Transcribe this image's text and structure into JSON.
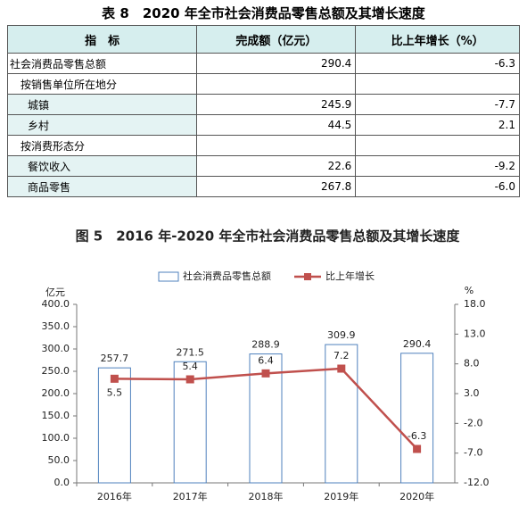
{
  "table": {
    "title": "表 8　2020 年全市社会消费品零售总额及其增长速度",
    "header": [
      "指　标",
      "完成额（亿元）",
      "比上年增长（%）"
    ],
    "rows": [
      [
        "社会消费品零售总额",
        "290.4",
        "-6.3"
      ],
      [
        "按销售单位所在地分",
        null,
        null
      ],
      [
        "城镇",
        "245.9",
        "-7.7"
      ],
      [
        "乡村",
        "44.5",
        "2.1"
      ],
      [
        "按消费形态分",
        null,
        null
      ],
      [
        "餐饮收入",
        "22.6",
        "-9.2"
      ],
      [
        "商品零售",
        "267.8",
        "-6.0"
      ]
    ]
  },
  "chart_data": {
    "type": "bar-line",
    "title": "图 5　2016 年-2020 年全市社会消费品零售总额及其增长速度",
    "y_label": "亿元",
    "y2_label": "%",
    "categories": [
      "2016年",
      "2017年",
      "2018年",
      "2019年",
      "2020年"
    ],
    "series": [
      {
        "name": "社会消费品零售总额",
        "type": "bar",
        "color": "#4f81bd",
        "values": [
          257.7,
          271.5,
          288.9,
          309.9,
          290.4
        ]
      },
      {
        "name": "比上年增长",
        "type": "line",
        "axis": "y2",
        "color": "#c0504d",
        "values": [
          5.5,
          5.4,
          6.4,
          7.2,
          -6.3
        ]
      }
    ],
    "ylim": [
      0,
      400
    ],
    "yticks": [
      {
        "value": 0,
        "label": "0.0"
      },
      {
        "value": 50,
        "label": "50.0"
      },
      {
        "value": 100,
        "label": "100.0"
      },
      {
        "value": 150,
        "label": "150.0"
      },
      {
        "value": 200,
        "label": "200.0"
      },
      {
        "value": 250,
        "label": "250.0"
      },
      {
        "value": 300,
        "label": "300.0"
      },
      {
        "value": 350,
        "label": "350.0"
      },
      {
        "value": 400,
        "label": "400.0"
      }
    ],
    "y2lim": [
      -12,
      18
    ],
    "y2ticks": [
      {
        "value": -12,
        "label": "-12.0"
      },
      {
        "value": -7,
        "label": "-7.0"
      },
      {
        "value": -2,
        "label": "-2.0"
      },
      {
        "value": 3,
        "label": "3.0"
      },
      {
        "value": 8,
        "label": "8.0"
      },
      {
        "value": 13,
        "label": "13.0"
      },
      {
        "value": 18,
        "label": "18.0"
      }
    ],
    "legend": "top"
  }
}
